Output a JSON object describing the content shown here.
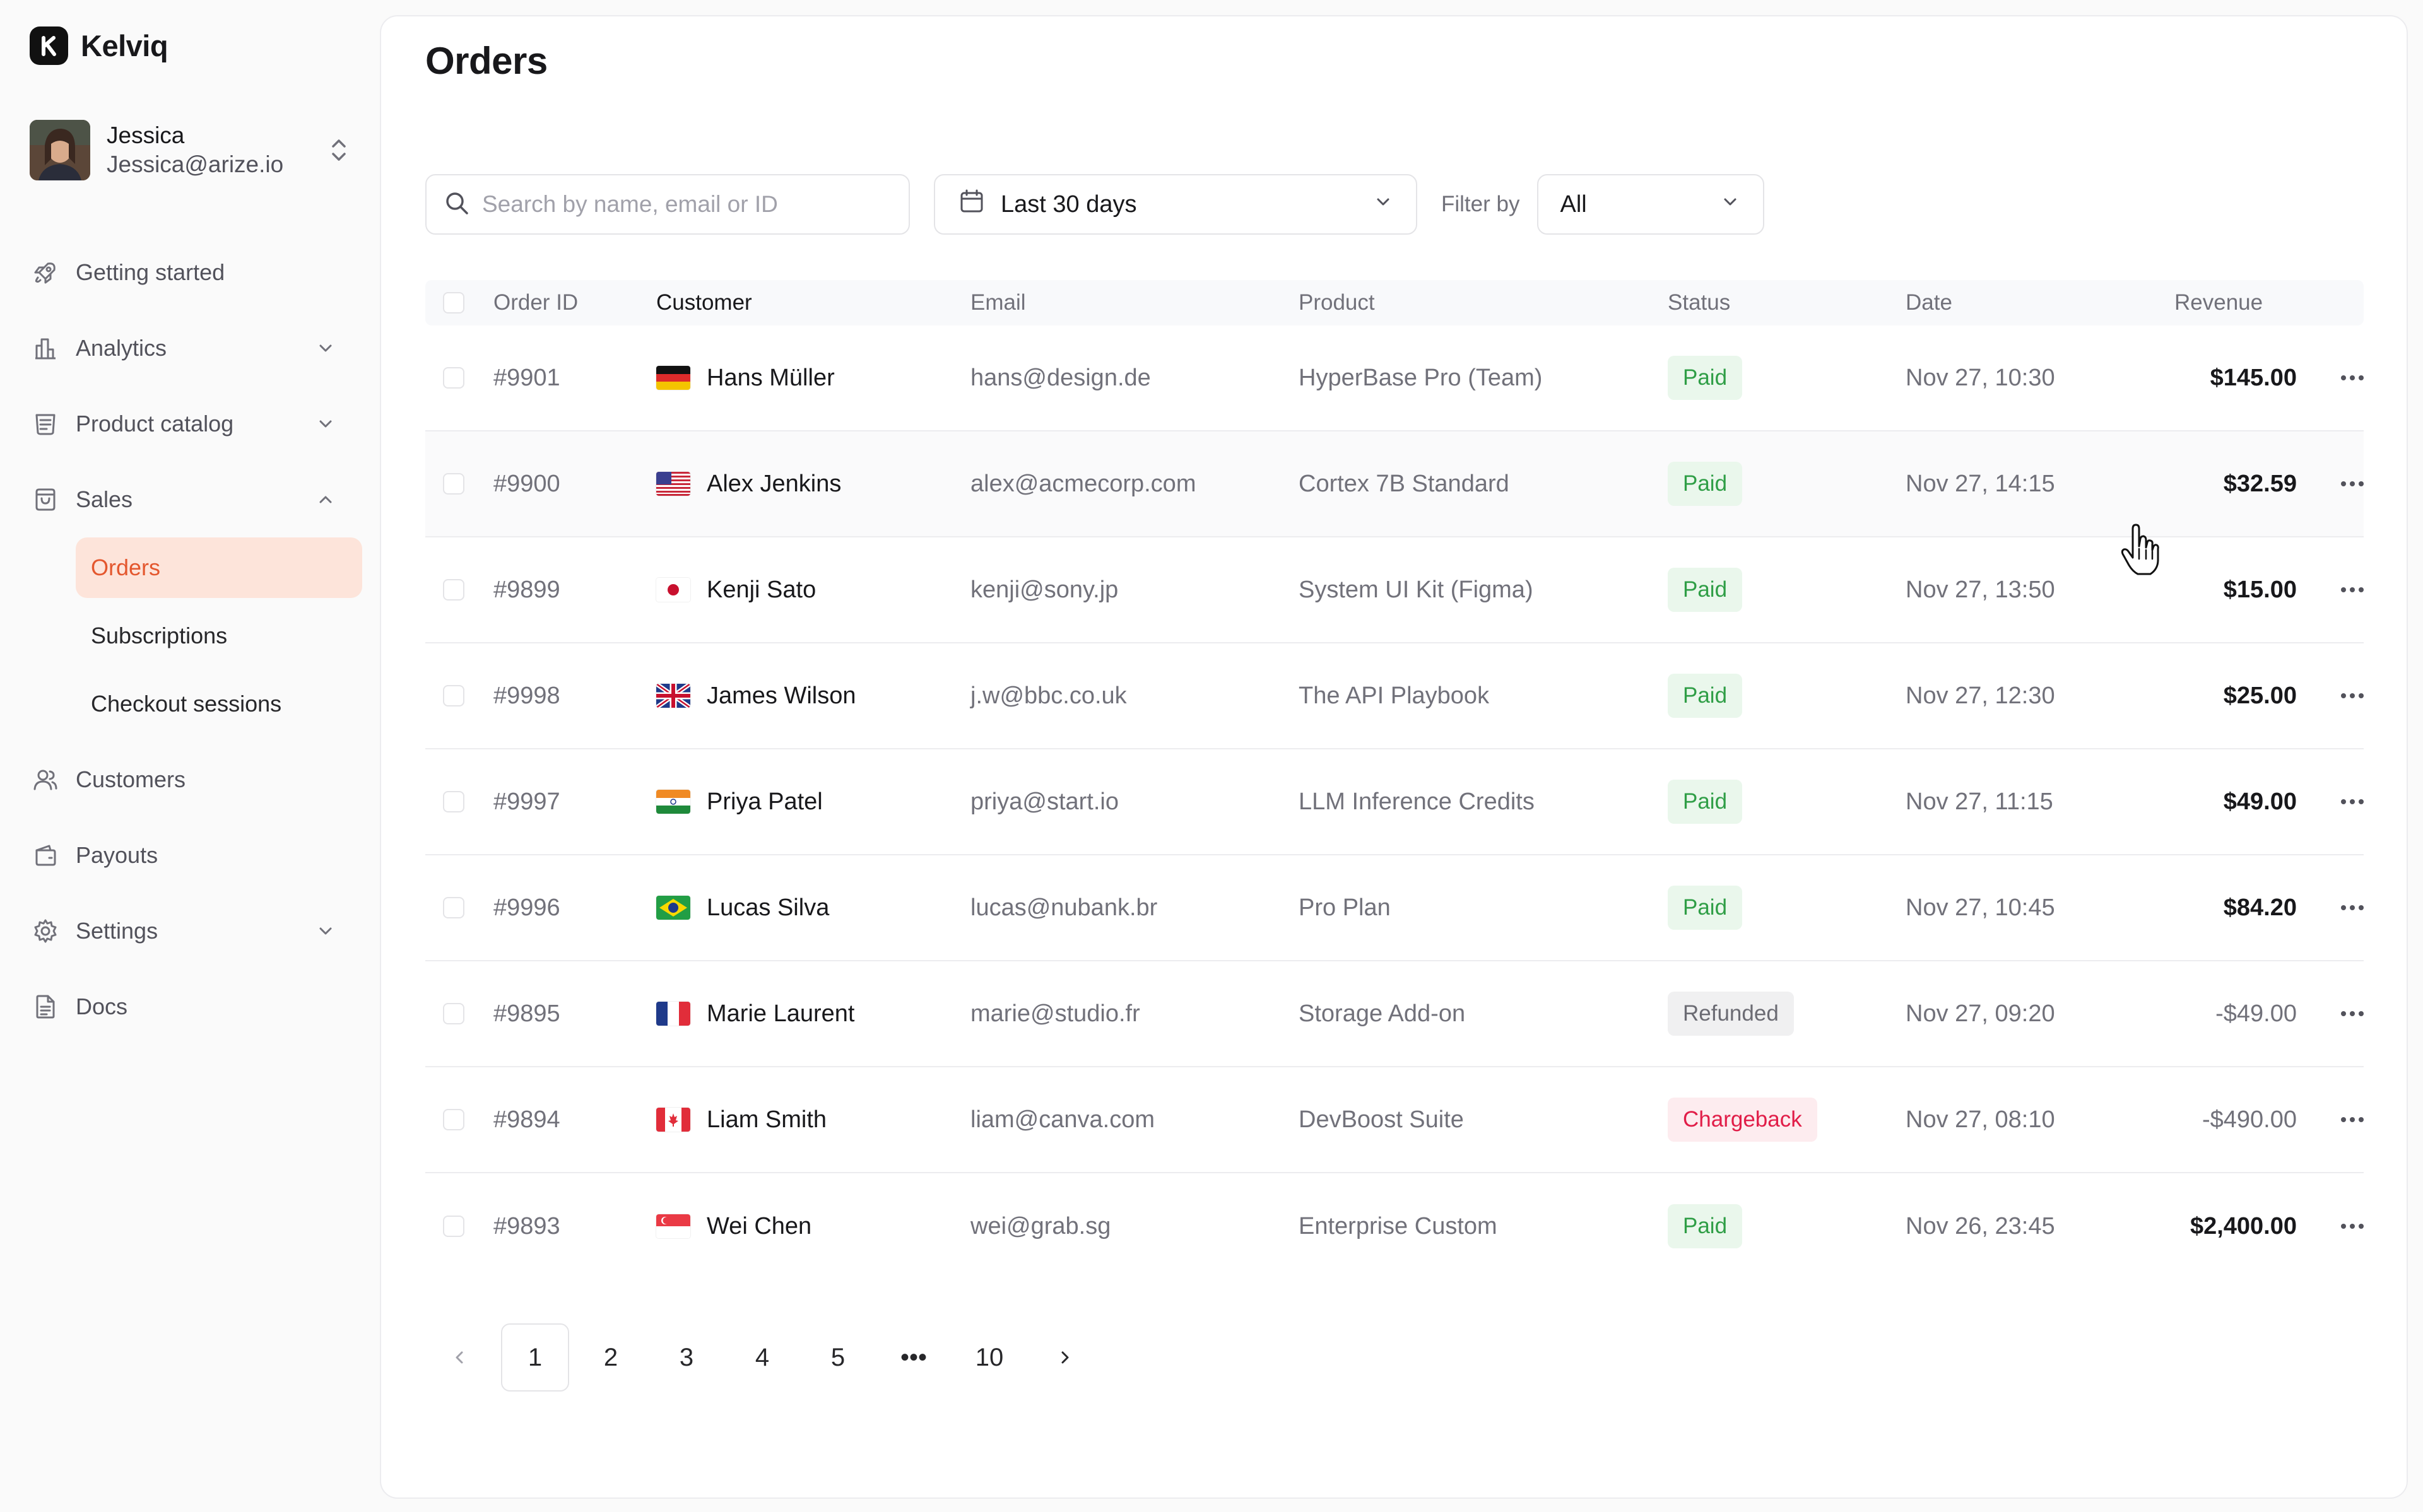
{
  "brand": {
    "name": "Kelviq",
    "logo_letter": "K"
  },
  "user": {
    "name": "Jessica",
    "email": "Jessica@arize.io"
  },
  "nav": [
    {
      "label": "Getting started",
      "icon": "rocket-icon",
      "chevron": ""
    },
    {
      "label": "Analytics",
      "icon": "chart-icon",
      "chevron": "down"
    },
    {
      "label": "Product catalog",
      "icon": "catalog-icon",
      "chevron": "down"
    },
    {
      "label": "Sales",
      "icon": "bag-icon",
      "chevron": "up"
    },
    {
      "label": "Customers",
      "icon": "users-icon",
      "chevron": ""
    },
    {
      "label": "Payouts",
      "icon": "wallet-icon",
      "chevron": ""
    },
    {
      "label": "Settings",
      "icon": "gear-icon",
      "chevron": "down"
    },
    {
      "label": "Docs",
      "icon": "doc-icon",
      "chevron": ""
    }
  ],
  "sales_sub": [
    {
      "label": "Orders",
      "active": true
    },
    {
      "label": "Subscriptions",
      "active": false
    },
    {
      "label": "Checkout sessions",
      "active": false
    }
  ],
  "page": {
    "title": "Orders"
  },
  "toolbar": {
    "search_placeholder": "Search by name, email or ID",
    "date_range": "Last 30 days",
    "filter_label": "Filter by",
    "filter_value": "All"
  },
  "table": {
    "headers": [
      "Order ID",
      "Customer",
      "Email",
      "Product",
      "Status",
      "Date",
      "Revenue"
    ],
    "rows": [
      {
        "id": "#9901",
        "customer": "Hans Müller",
        "flag": "de",
        "email": "hans@design.de",
        "product": "HyperBase Pro (Team)",
        "status": "Paid",
        "date": "Nov 27, 10:30",
        "revenue": "$145.00"
      },
      {
        "id": "#9900",
        "customer": "Alex Jenkins",
        "flag": "us",
        "email": "alex@acmecorp.com",
        "product": "Cortex 7B Standard",
        "status": "Paid",
        "date": "Nov 27, 14:15",
        "revenue": "$32.59"
      },
      {
        "id": "#9899",
        "customer": "Kenji Sato",
        "flag": "jp",
        "email": "kenji@sony.jp",
        "product": "System UI Kit (Figma)",
        "status": "Paid",
        "date": "Nov 27, 13:50",
        "revenue": "$15.00"
      },
      {
        "id": "#9998",
        "customer": "James Wilson",
        "flag": "gb",
        "email": "j.w@bbc.co.uk",
        "product": "The API Playbook",
        "status": "Paid",
        "date": "Nov 27, 12:30",
        "revenue": "$25.00"
      },
      {
        "id": "#9997",
        "customer": "Priya Patel",
        "flag": "in",
        "email": "priya@start.io",
        "product": "LLM Inference Credits",
        "status": "Paid",
        "date": "Nov 27, 11:15",
        "revenue": "$49.00"
      },
      {
        "id": "#9996",
        "customer": "Lucas Silva",
        "flag": "br",
        "email": "lucas@nubank.br",
        "product": "Pro Plan",
        "status": "Paid",
        "date": "Nov 27, 10:45",
        "revenue": "$84.20"
      },
      {
        "id": "#9895",
        "customer": "Marie Laurent",
        "flag": "fr",
        "email": "marie@studio.fr",
        "product": "Storage Add-on",
        "status": "Refunded",
        "date": "Nov 27, 09:20",
        "revenue": "-$49.00"
      },
      {
        "id": "#9894",
        "customer": "Liam Smith",
        "flag": "ca",
        "email": "liam@canva.com",
        "product": "DevBoost Suite",
        "status": "Chargeback",
        "date": "Nov 27, 08:10",
        "revenue": "-$490.00"
      },
      {
        "id": "#9893",
        "customer": "Wei Chen",
        "flag": "sg",
        "email": "wei@grab.sg",
        "product": "Enterprise Custom",
        "status": "Paid",
        "date": "Nov 26, 23:45",
        "revenue": "$2,400.00"
      }
    ]
  },
  "pagination": {
    "pages": [
      "1",
      "2",
      "3",
      "4",
      "5",
      "•••",
      "10"
    ],
    "current": "1"
  },
  "colors": {
    "accent": "#e4572e",
    "accent_bg": "#fde4da",
    "paid": "#2f9e46",
    "chargeback": "#e11d48"
  }
}
